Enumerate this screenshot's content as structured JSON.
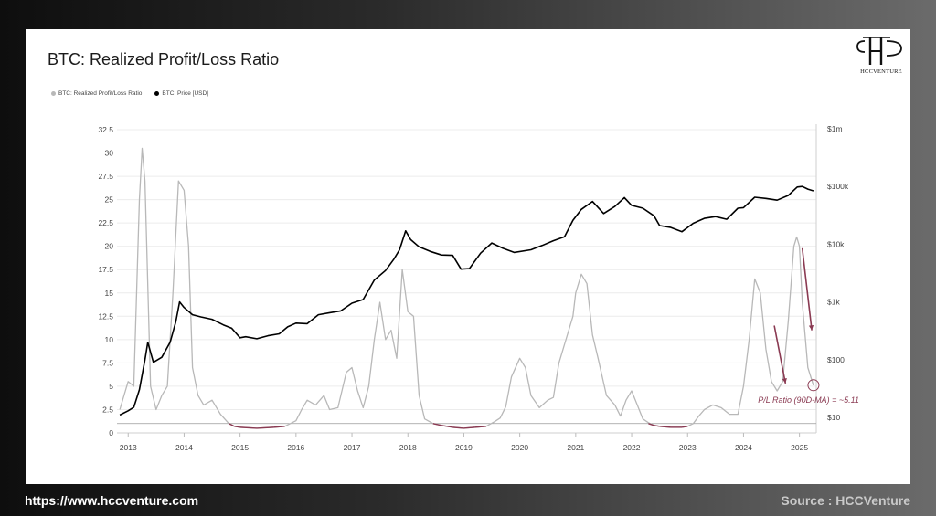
{
  "title": "BTC: Realized Profit/Loss Ratio",
  "legend": {
    "items": [
      {
        "label": "BTC: Realized Profit/Loss Ratio",
        "color": "#b8b8b8"
      },
      {
        "label": "BTC: Price [USD]",
        "color": "#000000"
      }
    ]
  },
  "logo": {
    "text": "HCCVENTURE"
  },
  "footer": {
    "url": "https://www.hccventure.com",
    "source": "Source : HCCVenture"
  },
  "annotation": {
    "text": "P/L Ratio (90D-MA) = ~5.11",
    "value": 5.11,
    "color": "#8a3a52"
  },
  "chart_data": {
    "type": "line",
    "title": "BTC: Realized Profit/Loss Ratio",
    "x_ticks": [
      "2013",
      "2014",
      "2015",
      "2016",
      "2017",
      "2018",
      "2019",
      "2020",
      "2021",
      "2022",
      "2023",
      "2024",
      "2025"
    ],
    "xlim": [
      2012.8,
      2025.3
    ],
    "left_axis": {
      "ticks": [
        "0",
        "2.5",
        "5",
        "7.5",
        "10",
        "12.5",
        "15",
        "17.5",
        "20",
        "22.5",
        "25",
        "27.5",
        "30",
        "32.5"
      ],
      "ylim": [
        0,
        32.5
      ]
    },
    "right_axis": {
      "scale": "log",
      "ticks": [
        "$10",
        "$100",
        "$1k",
        "$10k",
        "$100k",
        "$1m"
      ],
      "ylim": [
        10,
        1000000
      ]
    },
    "baseline": 1,
    "series": [
      {
        "name": "BTC: Realized Profit/Loss Ratio",
        "axis": "left",
        "color": "#b8b8b8",
        "x": [
          2012.85,
          2013.0,
          2013.1,
          2013.2,
          2013.25,
          2013.3,
          2013.4,
          2013.5,
          2013.6,
          2013.7,
          2013.8,
          2013.9,
          2014.0,
          2014.08,
          2014.15,
          2014.25,
          2014.35,
          2014.5,
          2014.65,
          2014.8,
          2014.9,
          2015.0,
          2015.3,
          2015.6,
          2015.8,
          2016.0,
          2016.1,
          2016.2,
          2016.35,
          2016.5,
          2016.6,
          2016.75,
          2016.9,
          2017.0,
          2017.1,
          2017.2,
          2017.3,
          2017.4,
          2017.5,
          2017.6,
          2017.7,
          2017.8,
          2017.9,
          2018.0,
          2018.1,
          2018.2,
          2018.3,
          2018.45,
          2018.6,
          2018.8,
          2019.0,
          2019.2,
          2019.4,
          2019.55,
          2019.65,
          2019.75,
          2019.85,
          2020.0,
          2020.1,
          2020.2,
          2020.35,
          2020.5,
          2020.6,
          2020.7,
          2020.8,
          2020.95,
          2021.0,
          2021.1,
          2021.2,
          2021.3,
          2021.4,
          2021.55,
          2021.7,
          2021.8,
          2021.9,
          2022.0,
          2022.1,
          2022.2,
          2022.3,
          2022.4,
          2022.5,
          2022.7,
          2022.9,
          2023.0,
          2023.1,
          2023.2,
          2023.3,
          2023.45,
          2023.6,
          2023.75,
          2023.9,
          2024.0,
          2024.1,
          2024.2,
          2024.3,
          2024.4,
          2024.5,
          2024.6,
          2024.7,
          2024.8,
          2024.9,
          2024.95,
          2025.0,
          2025.05,
          2025.15,
          2025.25
        ],
        "values": [
          2.5,
          5.5,
          5.0,
          25.0,
          30.5,
          27.0,
          5.0,
          2.5,
          4.0,
          5.0,
          15.0,
          27.0,
          26.0,
          20.0,
          7.0,
          4.0,
          3.0,
          3.5,
          2.0,
          1.0,
          0.7,
          0.6,
          0.5,
          0.6,
          0.7,
          1.3,
          2.5,
          3.5,
          3.0,
          4.0,
          2.5,
          2.7,
          6.5,
          7.0,
          4.5,
          2.7,
          5.0,
          10.0,
          14.0,
          10.0,
          11.0,
          8.0,
          17.5,
          13.0,
          12.5,
          4.0,
          1.5,
          1.0,
          0.8,
          0.6,
          0.5,
          0.6,
          0.7,
          1.2,
          1.6,
          2.8,
          6.0,
          8.0,
          7.0,
          4.0,
          2.7,
          3.5,
          3.8,
          7.5,
          9.5,
          12.5,
          15.0,
          17.0,
          16.0,
          10.5,
          8.0,
          4.0,
          3.0,
          1.8,
          3.5,
          4.5,
          3.0,
          1.5,
          1.1,
          0.8,
          0.7,
          0.6,
          0.6,
          0.7,
          1.0,
          1.8,
          2.5,
          3.0,
          2.7,
          2.0,
          2.0,
          5.0,
          10.0,
          16.5,
          15.0,
          9.0,
          5.5,
          4.5,
          5.5,
          12.0,
          20.0,
          21.0,
          20.0,
          14.0,
          7.0,
          5.1
        ]
      },
      {
        "name": "BTC: Price [USD]",
        "axis": "right",
        "color": "#000000",
        "x": [
          2012.85,
          2013.0,
          2013.1,
          2013.2,
          2013.3,
          2013.35,
          2013.45,
          2013.6,
          2013.75,
          2013.85,
          2013.92,
          2014.0,
          2014.15,
          2014.3,
          2014.5,
          2014.7,
          2014.85,
          2015.0,
          2015.1,
          2015.3,
          2015.5,
          2015.7,
          2015.85,
          2016.0,
          2016.2,
          2016.4,
          2016.6,
          2016.8,
          2017.0,
          2017.2,
          2017.4,
          2017.6,
          2017.75,
          2017.85,
          2017.96,
          2018.05,
          2018.2,
          2018.4,
          2018.6,
          2018.8,
          2018.95,
          2019.1,
          2019.3,
          2019.5,
          2019.7,
          2019.9,
          2020.2,
          2020.4,
          2020.6,
          2020.8,
          2020.95,
          2021.1,
          2021.3,
          2021.5,
          2021.7,
          2021.87,
          2022.0,
          2022.2,
          2022.4,
          2022.5,
          2022.7,
          2022.9,
          2023.1,
          2023.3,
          2023.5,
          2023.7,
          2023.9,
          2024.0,
          2024.2,
          2024.4,
          2024.6,
          2024.8,
          2024.96,
          2025.05,
          2025.15,
          2025.25
        ],
        "values": [
          11,
          13,
          15,
          30,
          100,
          200,
          90,
          110,
          200,
          450,
          1000,
          800,
          600,
          550,
          500,
          400,
          350,
          240,
          250,
          230,
          260,
          280,
          370,
          430,
          420,
          600,
          650,
          700,
          950,
          1100,
          2400,
          3500,
          5500,
          8000,
          17000,
          12000,
          9000,
          7500,
          6500,
          6400,
          3700,
          3800,
          7000,
          10500,
          8500,
          7200,
          8000,
          9500,
          11500,
          13500,
          26000,
          40000,
          55000,
          34000,
          45000,
          64000,
          47000,
          42000,
          31000,
          21000,
          19500,
          16500,
          23000,
          28000,
          30000,
          27000,
          42000,
          43000,
          65000,
          62000,
          58000,
          70000,
          98000,
          100000,
          90000,
          84000
        ]
      }
    ]
  }
}
